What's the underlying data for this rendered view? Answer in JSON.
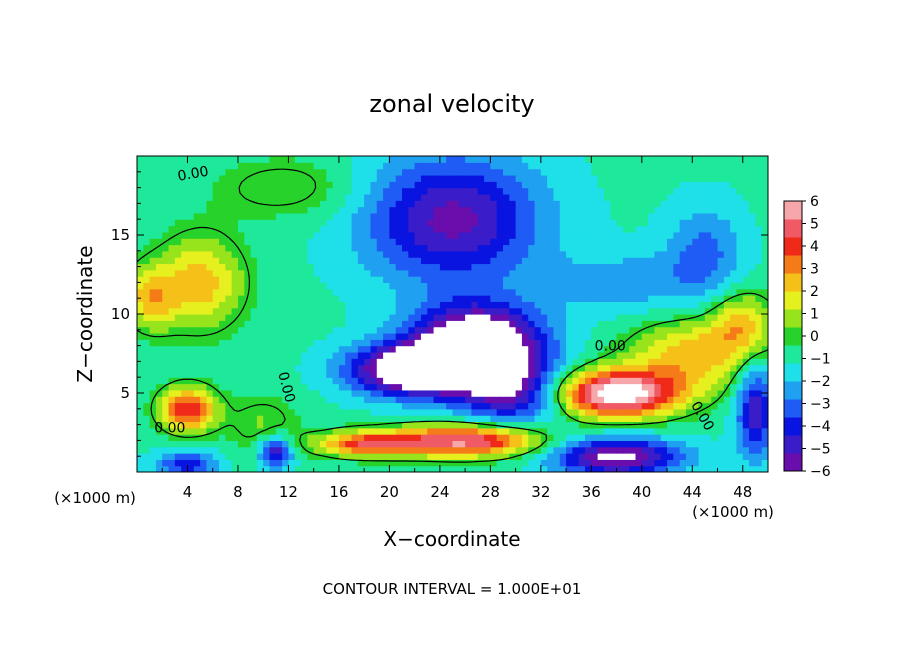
{
  "chart_data": {
    "type": "heatmap",
    "title": "zonal velocity",
    "xlabel": "X−coordinate",
    "ylabel": "Z−coordinate",
    "x_unit_left": "(×1000 m)",
    "x_unit_right": "(×1000 m)",
    "footer": "CONTOUR INTERVAL = 1.000E+01",
    "xlim": [
      0,
      50
    ],
    "ylim": [
      0,
      20
    ],
    "x_ticks": [
      4,
      8,
      12,
      16,
      20,
      24,
      28,
      32,
      36,
      40,
      44,
      48
    ],
    "y_ticks": [
      5,
      10,
      15
    ],
    "contour_label": "0.00",
    "colorbar": {
      "range": [
        -6,
        6
      ],
      "ticks": [
        6,
        5,
        4,
        3,
        2,
        1,
        0,
        -1,
        -2,
        -3,
        -4,
        -5,
        -6
      ],
      "tick_labels": [
        "6",
        "5",
        "4",
        "3",
        "2",
        "1",
        "0",
        "−1",
        "−2",
        "−3",
        "−4",
        "−5",
        "−6"
      ],
      "colors": [
        "#6a0dad",
        "#3a1cc8",
        "#0a14e0",
        "#1f5cf5",
        "#1fa0f0",
        "#1fe0e8",
        "#1ee89a",
        "#27d22a",
        "#98e41c",
        "#e6f01e",
        "#f5c018",
        "#f57a18",
        "#ef2a18",
        "#f05a64",
        "#f7a6aa"
      ]
    },
    "field_anomalies": [
      {
        "x": 5,
        "z": 12,
        "amp": 3.5,
        "sx": 3.5,
        "sz": 3
      },
      {
        "x": 4,
        "z": 4,
        "amp": 5.5,
        "sx": 2.2,
        "sz": 1.4
      },
      {
        "x": 1,
        "z": 11,
        "amp": 3,
        "sx": 2,
        "sz": 2
      },
      {
        "x": 10,
        "z": 3,
        "amp": 1.5,
        "sx": 3,
        "sz": 2
      },
      {
        "x": 27,
        "z": 8,
        "amp": -8,
        "sx": 5,
        "sz": 2.5
      },
      {
        "x": 22,
        "z": 6.5,
        "amp": -7,
        "sx": 5,
        "sz": 1.6
      },
      {
        "x": 25,
        "z": 16,
        "amp": -4.5,
        "sx": 7,
        "sz": 4
      },
      {
        "x": 30,
        "z": 5,
        "amp": -4,
        "sx": 4,
        "sz": 2
      },
      {
        "x": 26,
        "z": 2,
        "amp": 6.5,
        "sx": 6,
        "sz": 1
      },
      {
        "x": 18,
        "z": 1.8,
        "amp": 4.5,
        "sx": 4,
        "sz": 0.8
      },
      {
        "x": 38,
        "z": 5,
        "amp": 8,
        "sx": 5,
        "sz": 1.5
      },
      {
        "x": 44,
        "z": 7.5,
        "amp": 3.5,
        "sx": 5,
        "sz": 2.2
      },
      {
        "x": 48,
        "z": 9.5,
        "amp": 3,
        "sx": 2.5,
        "sz": 2
      },
      {
        "x": 38,
        "z": 1,
        "amp": -5.5,
        "sx": 5,
        "sz": 1.2
      },
      {
        "x": 49,
        "z": 4,
        "amp": -4,
        "sx": 1.5,
        "sz": 3
      },
      {
        "x": 4,
        "z": 0.5,
        "amp": -3,
        "sx": 2.5,
        "sz": 0.9
      },
      {
        "x": 11,
        "z": 1.3,
        "amp": -4.5,
        "sx": 1.3,
        "sz": 1
      },
      {
        "x": 45,
        "z": 14,
        "amp": -2,
        "sx": 3,
        "sz": 3
      },
      {
        "x": 12,
        "z": 18,
        "amp": 1.5,
        "sx": 6,
        "sz": 2
      },
      {
        "x": 39,
        "z": 12,
        "amp": -1.5,
        "sx": 6,
        "sz": 2
      }
    ],
    "field_background": -1
  }
}
